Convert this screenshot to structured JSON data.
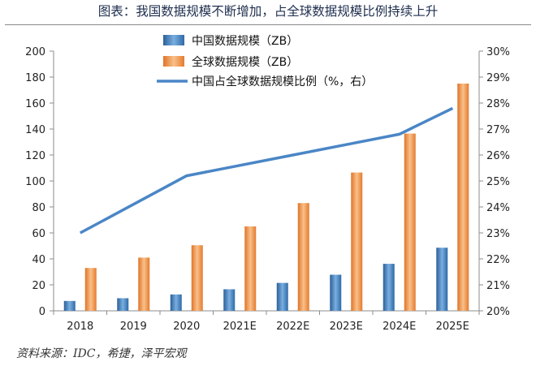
{
  "title": "图表：我国数据规模不断增加，占全球数据规模比例持续上升",
  "source": "资料来源：IDC，希捷，泽平宏观",
  "colors": {
    "china_bar": "#3f7fbf",
    "global_bar": "#ee8a3c",
    "line": "#4a86c6"
  },
  "chart_data": {
    "type": "bar",
    "title": "图表：我国数据规模不断增加，占全球数据规模比例持续上升",
    "categories": [
      "2018",
      "2019",
      "2020",
      "2021E",
      "2022E",
      "2023E",
      "2024E",
      "2025E"
    ],
    "series": [
      {
        "name": "中国数据规模（ZB）",
        "type": "bar",
        "axis": "left",
        "values": [
          7.6,
          9.7,
          12.6,
          16.6,
          21.5,
          27.8,
          36.2,
          48.6
        ]
      },
      {
        "name": "全球数据规模（ZB）",
        "type": "bar",
        "axis": "left",
        "values": [
          33,
          41,
          50.5,
          65,
          83,
          106.5,
          136.5,
          175
        ]
      },
      {
        "name": "中国占全球数据规模比例（%，右）",
        "type": "line",
        "axis": "right",
        "values": [
          23.0,
          24.1,
          25.2,
          25.6,
          26.0,
          26.4,
          26.8,
          27.8
        ]
      }
    ],
    "ylim_left": [
      0,
      200
    ],
    "yticks_left": [
      "0",
      "20",
      "40",
      "60",
      "80",
      "100",
      "120",
      "140",
      "160",
      "180",
      "200"
    ],
    "ylim_right": [
      20,
      30
    ],
    "yticks_right": [
      "20%",
      "21%",
      "22%",
      "23%",
      "24%",
      "25%",
      "26%",
      "27%",
      "28%",
      "29%",
      "30%"
    ],
    "grid": false,
    "legend_position": "top-left"
  }
}
